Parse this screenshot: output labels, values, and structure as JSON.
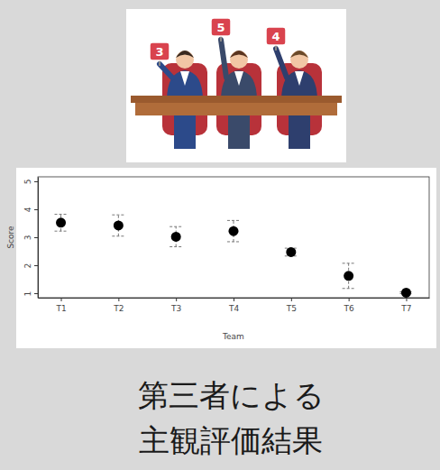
{
  "illustration": {
    "cards": [
      "3",
      "5",
      "4"
    ]
  },
  "caption": [
    "第三者による",
    "主観評価結果"
  ],
  "chart_data": {
    "type": "scatter",
    "x_label": "Team",
    "y_label": "Score",
    "categories": [
      "T1",
      "T2",
      "T3",
      "T4",
      "T5",
      "T6",
      "T7"
    ],
    "values": [
      3.52,
      3.42,
      3.02,
      3.22,
      2.47,
      1.62,
      1.02
    ],
    "errors": [
      0.3,
      0.38,
      0.36,
      0.38,
      0.14,
      0.45,
      0.03
    ],
    "ylim": [
      0.84,
      5.16
    ],
    "yticks": [
      1,
      2,
      3,
      4,
      5
    ],
    "color": "#000000",
    "marker": "circle",
    "line_style": "dashed"
  }
}
